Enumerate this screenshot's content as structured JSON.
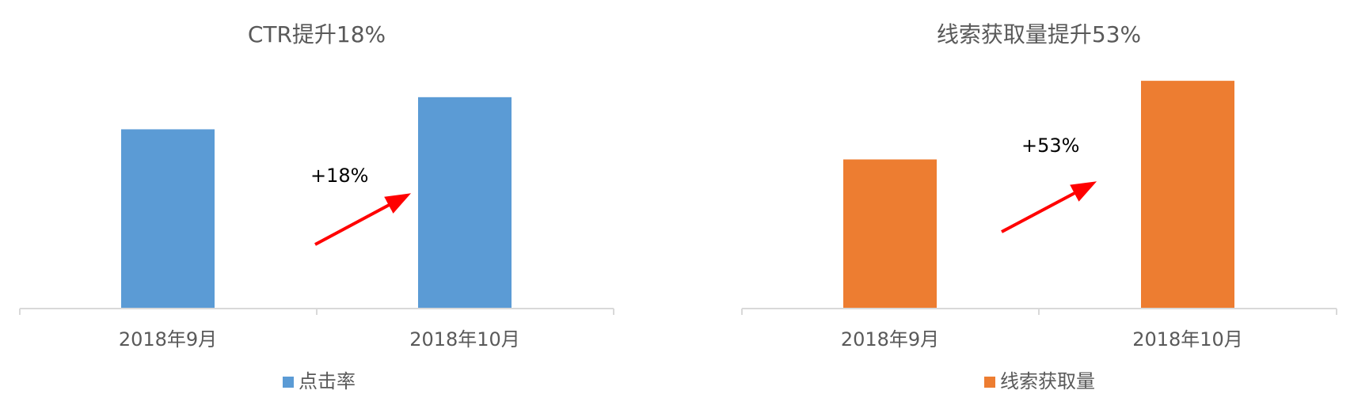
{
  "chart_data": [
    {
      "type": "bar",
      "title": "CTR提升18%",
      "categories": [
        "2018年9月",
        "2018年10月"
      ],
      "series": [
        {
          "name": "点击率",
          "values": [
            1.0,
            1.18
          ]
        }
      ],
      "ylim": [
        0,
        1.33
      ],
      "grid": false,
      "legend": "bottom",
      "annotation": "+18%",
      "colors": {
        "bar": "#5B9BD5",
        "axis": "#D9D9D9",
        "arrow": "#FF0000"
      }
    },
    {
      "type": "bar",
      "title": "线索获取量提升53%",
      "categories": [
        "2018年9月",
        "2018年10月"
      ],
      "series": [
        {
          "name": "线索获取量",
          "values": [
            1.0,
            1.53
          ]
        }
      ],
      "ylim": [
        0,
        1.6
      ],
      "grid": false,
      "legend": "bottom",
      "annotation": "+53%",
      "colors": {
        "bar": "#ED7D31",
        "axis": "#D9D9D9",
        "arrow": "#FF0000"
      }
    }
  ]
}
